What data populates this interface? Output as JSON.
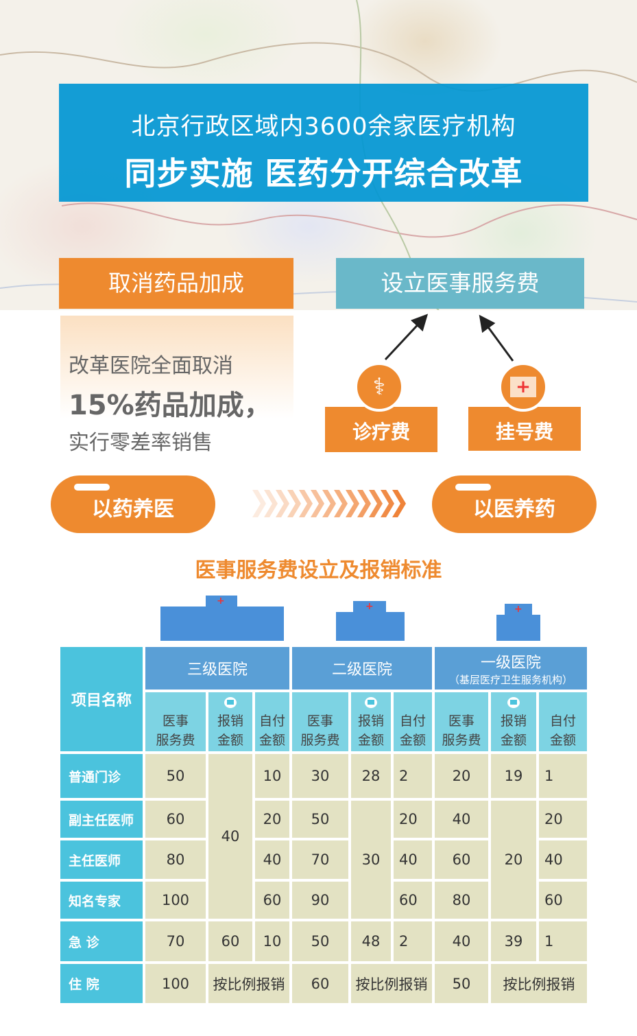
{
  "header": {
    "line1": "北京行政区域内3600余家医疗机构",
    "line2": "同步实施 医药分开综合改革"
  },
  "left_box": {
    "label": "取消药品加成",
    "desc1": "改革医院全面取消",
    "desc2": "15%药品加成，",
    "desc3": "实行零差率销售"
  },
  "right_box": {
    "label": "设立医事服务费",
    "items": [
      {
        "label": "诊疗费",
        "icon": "doctor-icon"
      },
      {
        "label": "挂号费",
        "icon": "medical-kit-icon"
      }
    ]
  },
  "transition": {
    "from": "以药养医",
    "to": "以医养药"
  },
  "colors": {
    "orange": "#ee8a2f",
    "blue": "#0096d2",
    "teal": "#6ab8c9",
    "cell": "#e3e2c3"
  },
  "table": {
    "title": "医事服务费设立及报销标准",
    "item_header": "项目名称",
    "groups": [
      {
        "name": "三级医院"
      },
      {
        "name": "二级医院"
      },
      {
        "name": "一级医院",
        "sub": "（基层医疗卫生服务机构）"
      }
    ],
    "sub_headers": {
      "fee_a": "医事",
      "fee_b": "服务费",
      "reim_a": "报销",
      "reim_b": "金额",
      "self_a": "自付",
      "self_b": "金额"
    },
    "rows": [
      {
        "name": "普通门诊",
        "v": [
          "50",
          "40",
          "10",
          "30",
          "28",
          "2",
          "20",
          "19",
          "1"
        ]
      },
      {
        "name": "副主任医师",
        "v": [
          "60",
          "",
          "20",
          "50",
          "30",
          "20",
          "40",
          "20",
          "20"
        ]
      },
      {
        "name": "主任医师",
        "v": [
          "80",
          "",
          "40",
          "70",
          "",
          "40",
          "60",
          "",
          "40"
        ]
      },
      {
        "name": "知名专家",
        "v": [
          "100",
          "",
          "60",
          "90",
          "",
          "60",
          "80",
          "",
          "60"
        ]
      },
      {
        "name": "急 诊",
        "v": [
          "70",
          "60",
          "10",
          "50",
          "48",
          "2",
          "40",
          "39",
          "1"
        ]
      },
      {
        "name": "住 院",
        "v": [
          "100",
          "按比例报销",
          "",
          "60",
          "按比例报销",
          "",
          "50",
          "按比例报销",
          ""
        ]
      }
    ]
  }
}
